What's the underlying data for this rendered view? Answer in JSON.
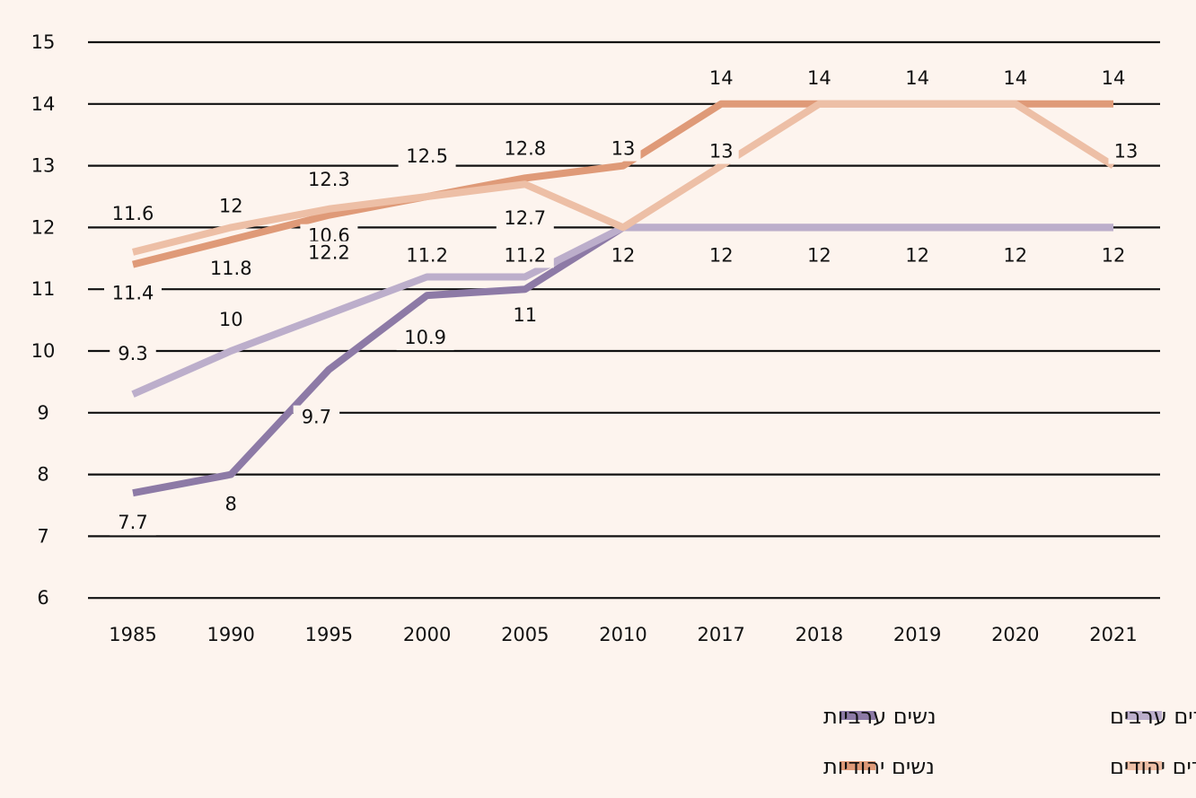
{
  "chart_data": {
    "type": "line",
    "title": "",
    "xlabel": "",
    "ylabel": "",
    "ylim": [
      6,
      15
    ],
    "yticks": [
      "6",
      "7",
      "8",
      "9",
      "10",
      "11",
      "12",
      "13",
      "14",
      "15"
    ],
    "categories": [
      "1985",
      "1990",
      "1995",
      "2000",
      "2005",
      "2010",
      "2017",
      "2018",
      "2019",
      "2020",
      "2021"
    ],
    "grid": true,
    "legend_position": "bottom-right",
    "series": [
      {
        "name": "נשים ערביות",
        "color": "#8d7aa6",
        "values": [
          7.7,
          8,
          9.7,
          10.9,
          11,
          12,
          12,
          12,
          12,
          12,
          12
        ],
        "labels": [
          "7.7",
          "8",
          "9.7",
          "10.9",
          "11",
          "",
          "",
          "",
          "",
          "",
          ""
        ]
      },
      {
        "name": "גברים ערבים",
        "color": "#bcaecb",
        "values": [
          9.3,
          10,
          10.6,
          11.2,
          11.2,
          12,
          12,
          12,
          12,
          12,
          12
        ],
        "labels": [
          "9.3",
          "10",
          "10.6",
          "11.2",
          "11.2",
          "12",
          "12",
          "12",
          "12",
          "12",
          "12"
        ]
      },
      {
        "name": "נשים יהודיות",
        "color": "#df9a78",
        "values": [
          11.4,
          11.8,
          12.2,
          12.5,
          12.8,
          13,
          14,
          14,
          14,
          14,
          14
        ],
        "labels": [
          "11.4",
          "11.8",
          "12.2",
          "12.5",
          "12.8",
          "13",
          "14",
          "14",
          "14",
          "14",
          "14"
        ]
      },
      {
        "name": "גברים יהודים",
        "color": "#edbfa6",
        "values": [
          11.6,
          12,
          12.3,
          12.5,
          12.7,
          12,
          13,
          14,
          14,
          14,
          13
        ],
        "labels": [
          "11.6",
          "12",
          "12.3",
          "",
          "12.7",
          "",
          "13",
          "",
          "",
          "",
          "13"
        ]
      }
    ]
  }
}
